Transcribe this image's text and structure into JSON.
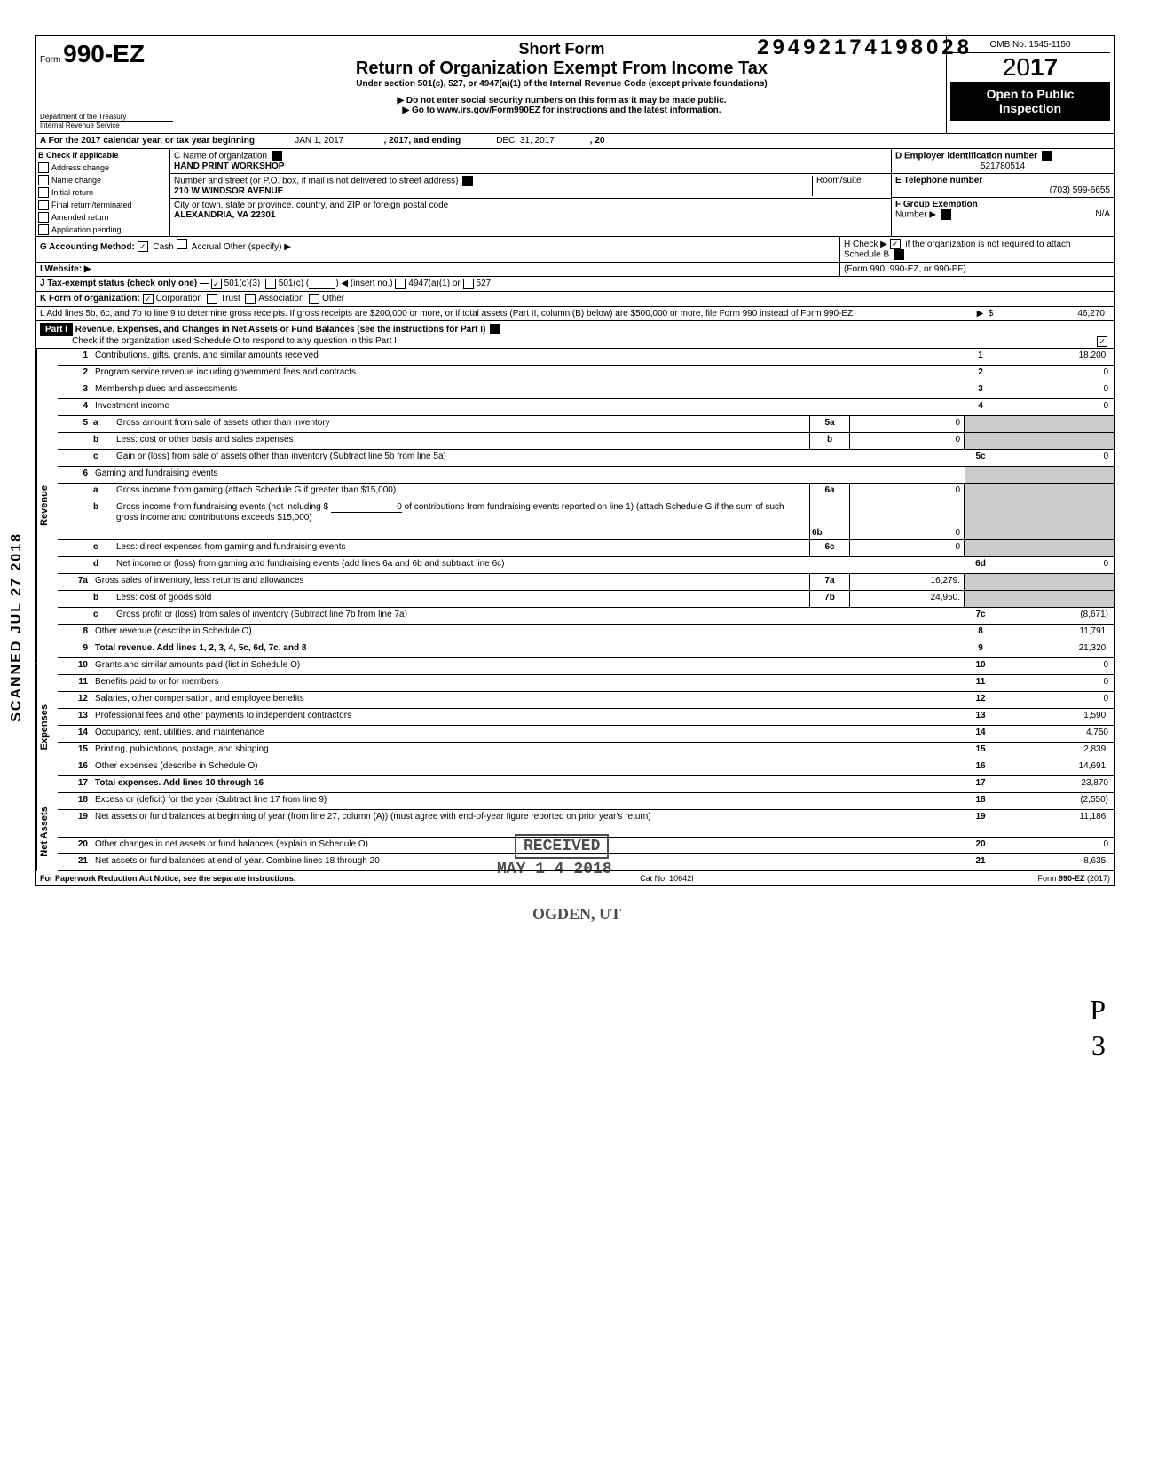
{
  "dln": "29492174198028",
  "omb": "OMB No. 1545-1150",
  "form_label": "Form",
  "form_number": "990-EZ",
  "short_form": "Short Form",
  "main_title": "Return of Organization Exempt From Income Tax",
  "subtitle1": "Under section 501(c), 527, or 4947(a)(1) of the Internal Revenue Code (except private foundations)",
  "subtitle2": "▶ Do not enter social security numbers on this form as it may be made public.",
  "subtitle3": "▶ Go to www.irs.gov/Form990EZ for instructions and the latest information.",
  "year_prefix": "20",
  "year_bold": "17",
  "open_public1": "Open to Public",
  "open_public2": "Inspection",
  "dept1": "Department of the Treasury",
  "dept2": "Internal Revenue Service",
  "section_a": {
    "label": "A  For the 2017 calendar year, or tax year beginning",
    "begin": "JAN 1, 2017",
    "mid": ", 2017, and ending",
    "end": "DEC. 31, 2017",
    "tail": ", 20"
  },
  "section_b_label": "B  Check if applicable",
  "checks": {
    "address": "Address change",
    "name": "Name change",
    "initial": "Initial return",
    "final": "Final return/terminated",
    "amended": "Amended return",
    "pending": "Application pending"
  },
  "c_label": "C  Name of organization",
  "org_name": "HAND PRINT WORKSHOP",
  "addr_label": "Number and street (or P.O. box, if mail is not delivered to street address)",
  "room_label": "Room/suite",
  "street": "210 W  WINDSOR AVENUE",
  "city_label": "City or town, state or province, country, and ZIP or foreign postal code",
  "city": "ALEXANDRIA, VA 22301",
  "d_label": "D Employer identification number",
  "ein": "521780514",
  "e_label": "E Telephone number",
  "phone": "(703) 599-6655",
  "f_label": "F Group Exemption",
  "f_label2": "Number ▶",
  "f_val": "N/A",
  "g_label": "G  Accounting Method:",
  "g_cash": "Cash",
  "g_accrual": "Accrual",
  "g_other": "Other (specify) ▶",
  "i_label": "I  Website: ▶",
  "h_label": "H  Check ▶",
  "h_text": "if the organization is not required to attach Schedule B",
  "h_text2": "(Form 990, 990-EZ, or 990-PF).",
  "j_label": "J  Tax-exempt status (check only one) —",
  "j_501c3": "501(c)(3)",
  "j_501c": "501(c) (",
  "j_insert": ") ◀ (insert no.)",
  "j_4947": "4947(a)(1) or",
  "j_527": "527",
  "k_label": "K  Form of organization:",
  "k_corp": "Corporation",
  "k_trust": "Trust",
  "k_assoc": "Association",
  "k_other": "Other",
  "l_text": "L  Add lines 5b, 6c, and 7b to line 9 to determine gross receipts. If gross receipts are $200,000 or more, or if total assets (Part II, column (B) below) are $500,000 or more, file Form 990 instead of Form 990-EZ",
  "l_val": "46,270",
  "part1_label": "Part I",
  "part1_title": "Revenue, Expenses, and Changes in Net Assets or Fund Balances (see the instructions for Part I)",
  "part1_check": "Check if the organization used Schedule O to respond to any question in this Part I",
  "vert_rev": "Revenue",
  "vert_exp": "Expenses",
  "vert_net": "Net Assets",
  "scanned": "SCANNED JUL 27 2018",
  "lines": {
    "1": {
      "desc": "Contributions, gifts, grants, and similar amounts received",
      "val": "18,200."
    },
    "2": {
      "desc": "Program service revenue including government fees and contracts",
      "val": "0"
    },
    "3": {
      "desc": "Membership dues and assessments",
      "val": "0"
    },
    "4": {
      "desc": "Investment income",
      "val": "0"
    },
    "5a": {
      "desc": "Gross amount from sale of assets other than inventory",
      "mid": "0"
    },
    "5b": {
      "desc": "Less: cost or other basis and sales expenses",
      "mid": "0"
    },
    "5c": {
      "desc": "Gain or (loss) from sale of assets other than inventory (Subtract line 5b from line 5a)",
      "val": "0"
    },
    "6": {
      "desc": "Gaming and fundraising events"
    },
    "6a": {
      "desc": "Gross income from gaming (attach Schedule G if greater than $15,000)",
      "mid": "0"
    },
    "6b": {
      "desc": "Gross income from fundraising events (not including  $",
      "desc2": "of contributions from fundraising events reported on line 1) (attach Schedule G if the sum of such gross income and contributions exceeds $15,000)",
      "contrib": "0",
      "mid": "0"
    },
    "6c": {
      "desc": "Less: direct expenses from gaming and fundraising events",
      "mid": "0"
    },
    "6d": {
      "desc": "Net income or (loss) from gaming and fundraising events (add lines 6a and 6b and subtract line 6c)",
      "val": "0"
    },
    "7a": {
      "desc": "Gross sales of inventory, less returns and allowances",
      "mid": "16,279."
    },
    "7b": {
      "desc": "Less: cost of goods sold",
      "mid": "24,950."
    },
    "7c": {
      "desc": "Gross profit or (loss) from sales of inventory (Subtract line 7b from line 7a)",
      "val": "(8,671)"
    },
    "8": {
      "desc": "Other revenue (describe in Schedule O)",
      "val": "11,791."
    },
    "9": {
      "desc": "Total revenue. Add lines 1, 2, 3, 4, 5c, 6d, 7c, and 8",
      "val": "21,320."
    },
    "10": {
      "desc": "Grants and similar amounts paid (list in Schedule O)",
      "val": "0"
    },
    "11": {
      "desc": "Benefits paid to or for members",
      "val": "0"
    },
    "12": {
      "desc": "Salaries, other compensation, and employee benefits",
      "val": "0"
    },
    "13": {
      "desc": "Professional fees and other payments to independent contractors",
      "val": "1,590."
    },
    "14": {
      "desc": "Occupancy, rent, utilities, and maintenance",
      "val": "4,750"
    },
    "15": {
      "desc": "Printing, publications, postage, and shipping",
      "val": "2,839."
    },
    "16": {
      "desc": "Other expenses (describe in Schedule O)",
      "val": "14,691."
    },
    "17": {
      "desc": "Total expenses. Add lines 10 through 16",
      "val": "23,870"
    },
    "18": {
      "desc": "Excess or (deficit) for the year (Subtract line 17 from line 9)",
      "val": "(2,550)"
    },
    "19": {
      "desc": "Net assets or fund balances at beginning of year (from line 27, column (A)) (must agree with end-of-year figure reported on prior year's return)",
      "val": "11,186."
    },
    "20": {
      "desc": "Other changes in net assets or fund balances (explain in Schedule O)",
      "val": "0"
    },
    "21": {
      "desc": "Net assets or fund balances at end of year. Combine lines 18 through 20",
      "val": "8,635."
    }
  },
  "footer": {
    "left": "For Paperwork Reduction Act Notice, see the separate instructions.",
    "mid": "Cat  No. 10642I",
    "right": "Form 990-EZ (2017)"
  },
  "stamps": {
    "received": "RECEIVED",
    "date": "MAY 1 4 2018",
    "ogden": "OGDEN, UT"
  },
  "handwrite": {
    "p": "P",
    "three": "3"
  }
}
